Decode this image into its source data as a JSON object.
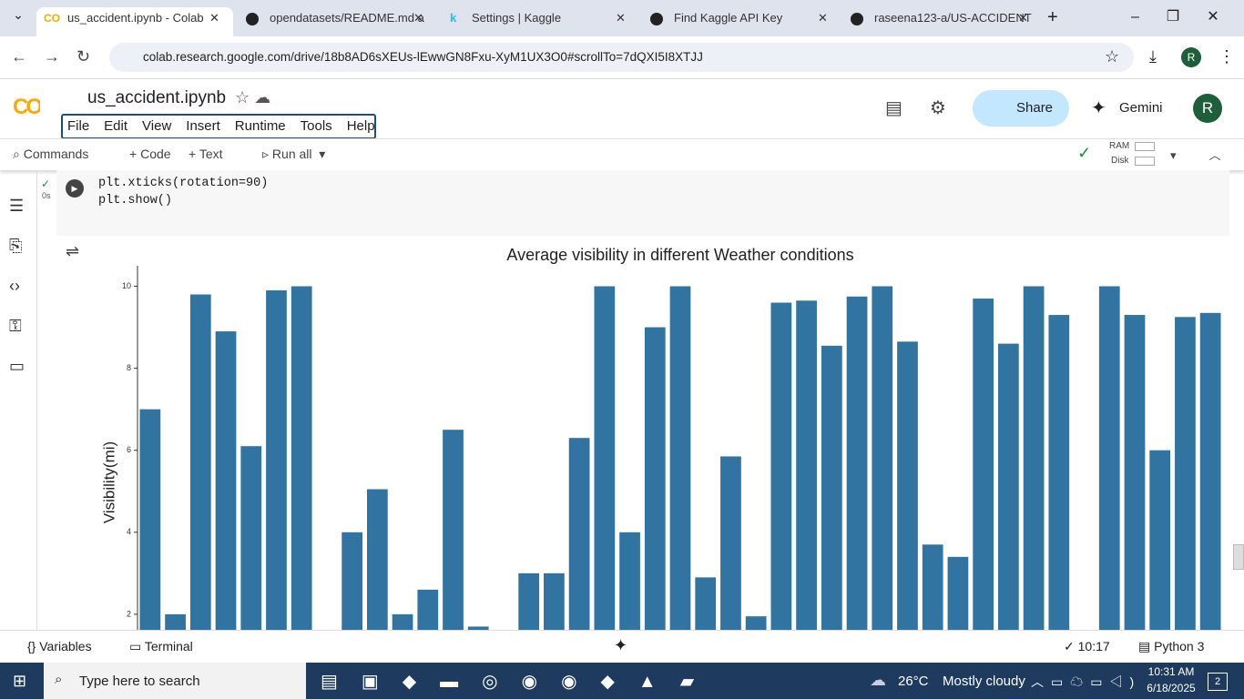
{
  "browser": {
    "tabs": [
      "us_accident.ipynb - Colab",
      "opendatasets/README.md a",
      "Settings | Kaggle",
      "Find Kaggle API Key",
      "raseena123-a/US-ACCIDENT"
    ],
    "url": "colab.research.google.com/drive/18b8AD6sXEUs-lEwwGN8Fxu-XyM1UX3O0#scrollTo=7dQXI5I8XTJJ",
    "profile": "R"
  },
  "colab": {
    "notebook_name": "us_accident.ipynb",
    "menu": [
      "File",
      "Edit",
      "View",
      "Insert",
      "Runtime",
      "Tools",
      "Help"
    ],
    "share": "Share",
    "gemini": "Gemini",
    "avatar": "R",
    "toolbar": {
      "commands": "Commands",
      "code": "Code",
      "text": "Text",
      "run_all": "Run all",
      "ram": "RAM",
      "disk": "Disk"
    },
    "cell": {
      "exec_time": "0s",
      "code": [
        "plt.xticks(rotation=90)",
        "plt.show()"
      ]
    },
    "status": {
      "variables": "Variables",
      "terminal": "Terminal",
      "time": "10:17",
      "kernel": "Python 3"
    }
  },
  "chart_data": {
    "type": "bar",
    "title": "Average visibility in different Weather conditions",
    "y_label": "Visibility(mi)",
    "color": "#3274a1",
    "categories": [
      null,
      null,
      null,
      null,
      null,
      null,
      null,
      null,
      null,
      null,
      null,
      null,
      null,
      null,
      null,
      null,
      null,
      null,
      null,
      null,
      null,
      null,
      null,
      null,
      null,
      null,
      null,
      null,
      null,
      null,
      null,
      null,
      null,
      null,
      null,
      null,
      null,
      null,
      null,
      null,
      null,
      null,
      null
    ],
    "values": [
      7.0,
      2.0,
      9.8,
      8.9,
      6.1,
      9.9,
      10,
      null,
      4.0,
      5.05,
      2.0,
      2.6,
      6.5,
      1.7,
      null,
      3.0,
      3.0,
      6.3,
      10,
      4.0,
      9.0,
      10,
      2.9,
      5.85,
      1.95,
      9.6,
      9.65,
      8.55,
      9.75,
      10,
      8.65,
      3.7,
      3.4,
      9.7,
      8.6,
      10,
      9.3,
      null,
      10,
      9.3,
      6.0,
      9.25,
      9.35
    ],
    "ylim": [
      0,
      10.5
    ],
    "yticks": [
      2,
      4,
      6,
      8,
      10
    ]
  },
  "taskbar": {
    "search": "Type here to search",
    "temperature": "26°C",
    "weather": "Mostly cloudy",
    "time": "10:31 AM",
    "date": "6/18/2025",
    "notifications": "2"
  }
}
